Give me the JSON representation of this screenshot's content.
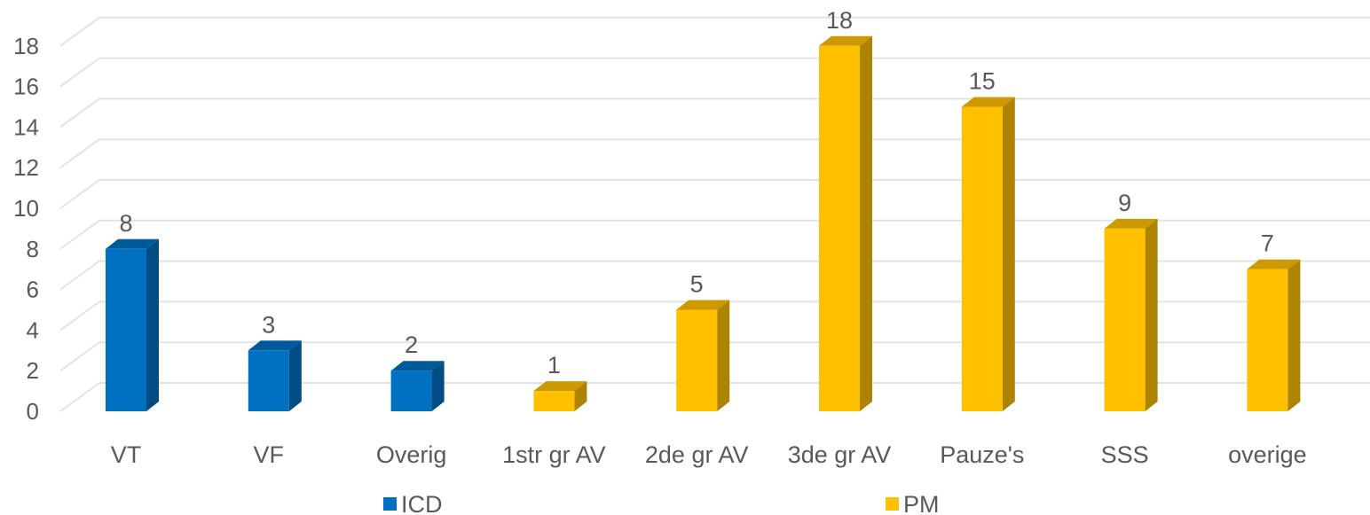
{
  "chart_data": {
    "type": "bar",
    "style": "3d-column",
    "categories": [
      "VT",
      "VF",
      "Overig",
      "1str gr AV",
      "2de gr AV",
      "3de gr AV",
      "Pauze's",
      "SSS",
      "overige"
    ],
    "series": [
      {
        "name": "ICD",
        "color": "#0070C0",
        "values": [
          8,
          3,
          2,
          null,
          null,
          null,
          null,
          null,
          null
        ]
      },
      {
        "name": "PM",
        "color": "#FFC000",
        "values": [
          null,
          null,
          null,
          1,
          5,
          18,
          15,
          9,
          7
        ]
      }
    ],
    "data_labels": [
      "8",
      "3",
      "2",
      "1",
      "5",
      "18",
      "15",
      "9",
      "7"
    ],
    "y_ticks": [
      "0",
      "2",
      "4",
      "6",
      "8",
      "10",
      "12",
      "14",
      "16",
      "18"
    ],
    "ylim": [
      0,
      18
    ],
    "grid": true,
    "legend_position": "bottom",
    "title": "",
    "xlabel": "",
    "ylabel": ""
  }
}
